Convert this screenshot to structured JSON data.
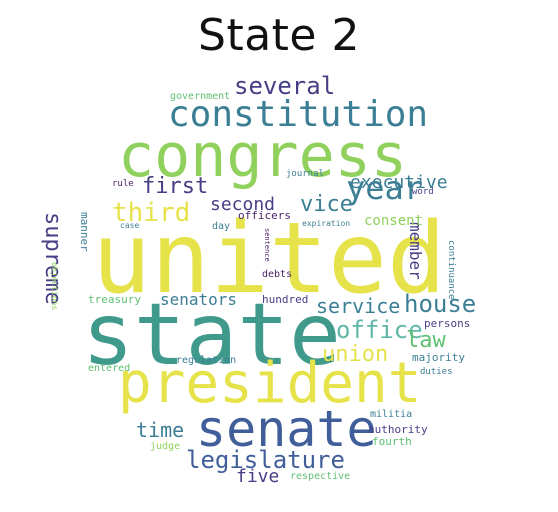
{
  "title": "State 2",
  "palette": {
    "yellow": "#e6e24a",
    "light_green": "#8fd15c",
    "green": "#5fbf72",
    "teal": "#3f9a8c",
    "teal_blue": "#3c7f95",
    "blue": "#405f9a",
    "indigo": "#463f85",
    "purple": "#4b1f66",
    "aqua": "#5fb7a8"
  },
  "words": [
    {
      "text": "united",
      "color": "yellow"
    },
    {
      "text": "state",
      "color": "teal"
    },
    {
      "text": "congress",
      "color": "light_green"
    },
    {
      "text": "president",
      "color": "yellow"
    },
    {
      "text": "senate",
      "color": "blue"
    },
    {
      "text": "constitution",
      "color": "teal_blue"
    },
    {
      "text": "legislature",
      "color": "blue"
    },
    {
      "text": "year",
      "color": "teal_blue"
    },
    {
      "text": "third",
      "color": "yellow"
    },
    {
      "text": "several",
      "color": "indigo"
    },
    {
      "text": "first",
      "color": "indigo"
    },
    {
      "text": "office",
      "color": "aqua"
    },
    {
      "text": "house",
      "color": "teal_blue"
    },
    {
      "text": "union",
      "color": "yellow"
    },
    {
      "text": "law",
      "color": "green"
    },
    {
      "text": "vice",
      "color": "teal_blue"
    },
    {
      "text": "second",
      "color": "indigo"
    },
    {
      "text": "executive",
      "color": "teal_blue"
    },
    {
      "text": "supreme",
      "color": "indigo"
    },
    {
      "text": "service",
      "color": "teal_blue"
    },
    {
      "text": "time",
      "color": "teal_blue"
    },
    {
      "text": "five",
      "color": "indigo"
    },
    {
      "text": "senators",
      "color": "teal_blue"
    },
    {
      "text": "member",
      "color": "indigo"
    },
    {
      "text": "consent",
      "color": "light_green"
    },
    {
      "text": "government",
      "color": "green"
    },
    {
      "text": "rule",
      "color": "purple"
    },
    {
      "text": "journal",
      "color": "teal_blue"
    },
    {
      "text": "officers",
      "color": "purple"
    },
    {
      "text": "expiration",
      "color": "teal_blue"
    },
    {
      "text": "day",
      "color": "teal_blue"
    },
    {
      "text": "manner",
      "color": "teal_blue"
    },
    {
      "text": "debts",
      "color": "purple"
    },
    {
      "text": "hundred",
      "color": "indigo"
    },
    {
      "text": "treasury",
      "color": "green"
    },
    {
      "text": "persons",
      "color": "indigo"
    },
    {
      "text": "majority",
      "color": "teal_blue"
    },
    {
      "text": "regulation",
      "color": "teal_blue"
    },
    {
      "text": "duties",
      "color": "teal_blue"
    },
    {
      "text": "militia",
      "color": "teal_blue"
    },
    {
      "text": "authority",
      "color": "indigo"
    },
    {
      "text": "fourth",
      "color": "green"
    },
    {
      "text": "judge",
      "color": "light_green"
    },
    {
      "text": "respective",
      "color": "green"
    },
    {
      "text": "word",
      "color": "indigo"
    },
    {
      "text": "continuance",
      "color": "teal_blue"
    },
    {
      "text": "objections",
      "color": "light_green"
    },
    {
      "text": "entered",
      "color": "green"
    },
    {
      "text": "sentence",
      "color": "purple"
    },
    {
      "text": "case",
      "color": "teal_blue"
    }
  ]
}
